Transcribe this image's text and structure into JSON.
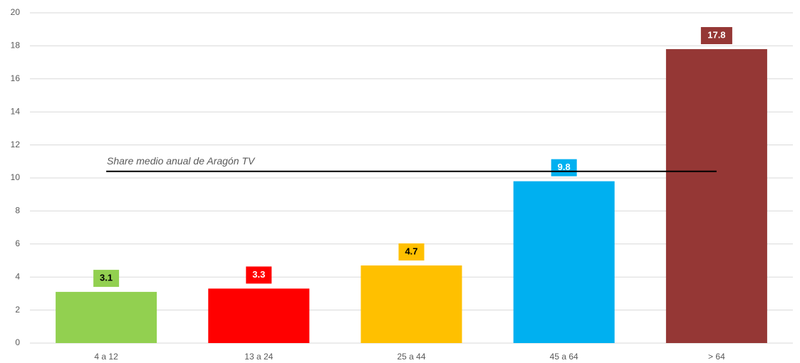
{
  "chart_data": {
    "type": "bar",
    "categories": [
      "4 a 12",
      "13 a 24",
      "25 a 44",
      "45 a 64",
      "> 64"
    ],
    "values": [
      3.1,
      3.3,
      4.7,
      9.8,
      17.8
    ],
    "colors": [
      "#92d050",
      "#ff0000",
      "#ffc000",
      "#00b0f0",
      "#953735"
    ],
    "label_text_colors": [
      "#000000",
      "#ffffff",
      "#000000",
      "#ffffff",
      "#ffffff"
    ],
    "ylim": [
      0,
      20
    ],
    "yticks": [
      0,
      2,
      4,
      6,
      8,
      10,
      12,
      14,
      16,
      18,
      20
    ],
    "grid": true,
    "reference_line": {
      "value": 10.4,
      "label": "Share medio anual de Aragón TV",
      "color": "#000000"
    }
  }
}
